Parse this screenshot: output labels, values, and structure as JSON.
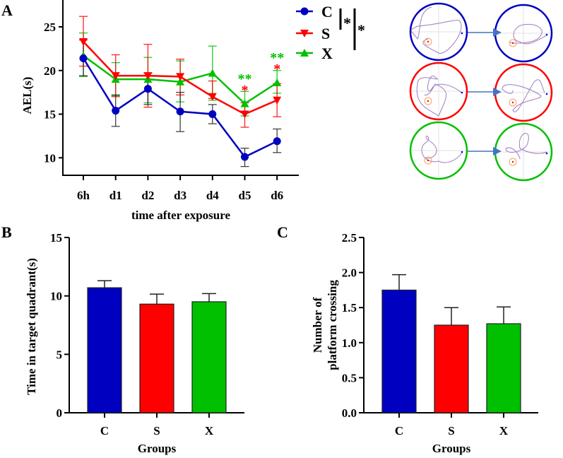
{
  "colors": {
    "C": "#0000c0",
    "S": "#ff0000",
    "X": "#00c000",
    "axis": "#000000",
    "path": "#a07cc0",
    "arrow": "#4472c4",
    "platform": "#f4a460"
  },
  "chart_data": [
    {
      "panel": "A",
      "type": "line",
      "xlabel": "time after exposure",
      "ylabel": "AEL(s)",
      "categories": [
        "6h",
        "d1",
        "d2",
        "d3",
        "d4",
        "d5",
        "d6"
      ],
      "yticks": [
        "10",
        "15",
        "20",
        "25"
      ],
      "ytick_values": [
        10,
        15,
        20,
        25
      ],
      "ylim": [
        8,
        27
      ],
      "legend": "top-right",
      "series": [
        {
          "name": "C",
          "marker": "circle",
          "values": [
            21.4,
            15.4,
            17.9,
            15.3,
            15.0,
            10.1,
            11.9
          ],
          "lower": [
            19.4,
            13.6,
            16.1,
            13.0,
            13.9,
            9.0,
            10.6
          ],
          "upper": [
            23.5,
            17.2,
            19.7,
            17.5,
            16.1,
            11.1,
            13.3
          ]
        },
        {
          "name": "S",
          "marker": "triangle-down",
          "values": [
            23.3,
            19.4,
            19.4,
            19.3,
            17.0,
            15.0,
            16.6
          ],
          "lower": [
            20.5,
            17.0,
            15.8,
            17.2,
            16.8,
            13.5,
            14.7
          ],
          "upper": [
            26.2,
            21.8,
            23.0,
            21.3,
            18.8,
            16.3,
            18.5
          ]
        },
        {
          "name": "X",
          "marker": "triangle-up",
          "values": [
            21.7,
            19.0,
            19.0,
            18.7,
            19.7,
            16.2,
            18.6
          ],
          "lower": [
            19.3,
            17.1,
            16.3,
            16.4,
            16.6,
            14.8,
            17.4
          ],
          "upper": [
            24.3,
            20.9,
            21.5,
            21.1,
            22.8,
            17.6,
            20.0
          ]
        }
      ],
      "annotations": [
        {
          "category": "d5",
          "text": "**",
          "color": "X"
        },
        {
          "category": "d5",
          "text": "*",
          "color": "S"
        },
        {
          "category": "d6",
          "text": "**",
          "color": "X"
        },
        {
          "category": "d6",
          "text": "*",
          "color": "S"
        }
      ],
      "legend_significance": [
        "*",
        "*"
      ]
    },
    {
      "panel": "B",
      "type": "bar",
      "xlabel": "Groups",
      "ylabel": "Time in target quadrant(s)",
      "categories": [
        "C",
        "S",
        "X"
      ],
      "values": [
        10.7,
        9.3,
        9.5
      ],
      "errors_upper": [
        11.3,
        10.15,
        10.2
      ],
      "yticks": [
        "0",
        "5",
        "10",
        "15"
      ],
      "ytick_values": [
        0,
        5,
        10,
        15
      ],
      "ylim": [
        0,
        15
      ]
    },
    {
      "panel": "C",
      "type": "bar",
      "xlabel": "Groups",
      "ylabel": [
        "Number of",
        "platform crossing"
      ],
      "categories": [
        "C",
        "S",
        "X"
      ],
      "values": [
        1.75,
        1.25,
        1.27
      ],
      "errors_upper": [
        1.97,
        1.5,
        1.51
      ],
      "yticks": [
        "0.0",
        "0.5",
        "1.0",
        "1.5",
        "2.0",
        "2.5"
      ],
      "ytick_values": [
        0,
        0.5,
        1.0,
        1.5,
        2.0,
        2.5
      ],
      "ylim": [
        0,
        2.5
      ]
    }
  ]
}
